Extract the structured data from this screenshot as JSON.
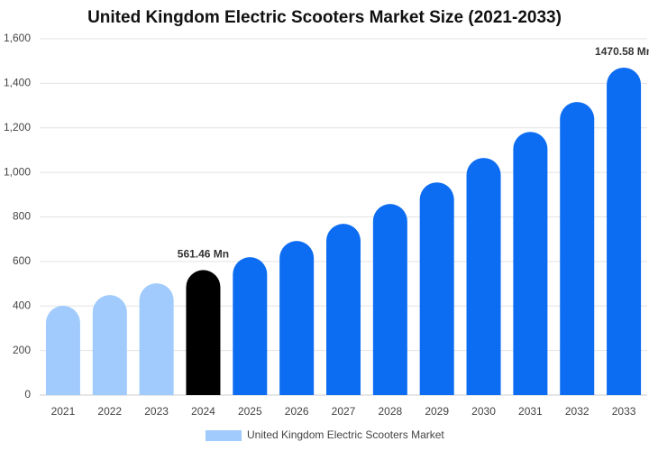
{
  "chart_data": {
    "type": "bar",
    "title": "United Kingdom Electric Scooters Market Size (2021-2033)",
    "categories": [
      "2021",
      "2022",
      "2023",
      "2024",
      "2025",
      "2026",
      "2027",
      "2028",
      "2029",
      "2030",
      "2031",
      "2032",
      "2033"
    ],
    "series": [
      {
        "name": "United Kingdom Electric Scooters Market",
        "color": "#a0cbfc",
        "values": [
          401,
          449,
          502,
          561.46,
          619,
          692,
          769,
          858,
          955,
          1065,
          1182,
          1316,
          1470.58
        ],
        "value_labels": [
          null,
          null,
          null,
          "561.46 Mn",
          null,
          null,
          null,
          null,
          null,
          null,
          null,
          null,
          "1470.58 Mn"
        ],
        "colors": [
          "#a0cbfc",
          "#a0cbfc",
          "#a0cbfc",
          "#000000",
          "#0c6cf2",
          "#0c6cf2",
          "#0c6cf2",
          "#0c6cf2",
          "#0c6cf2",
          "#0c6cf2",
          "#0c6cf2",
          "#0c6cf2",
          "#0c6cf2"
        ]
      }
    ],
    "ylim": [
      0,
      1600
    ],
    "yticks": [
      0,
      200,
      400,
      600,
      800,
      {
        "value": 1000,
        "label": "1,000"
      },
      {
        "value": 1200,
        "label": "1,200"
      },
      {
        "value": 1400,
        "label": "1,400"
      },
      {
        "value": 1600,
        "label": "1,600"
      }
    ],
    "grid": true,
    "legend": "bottom"
  }
}
